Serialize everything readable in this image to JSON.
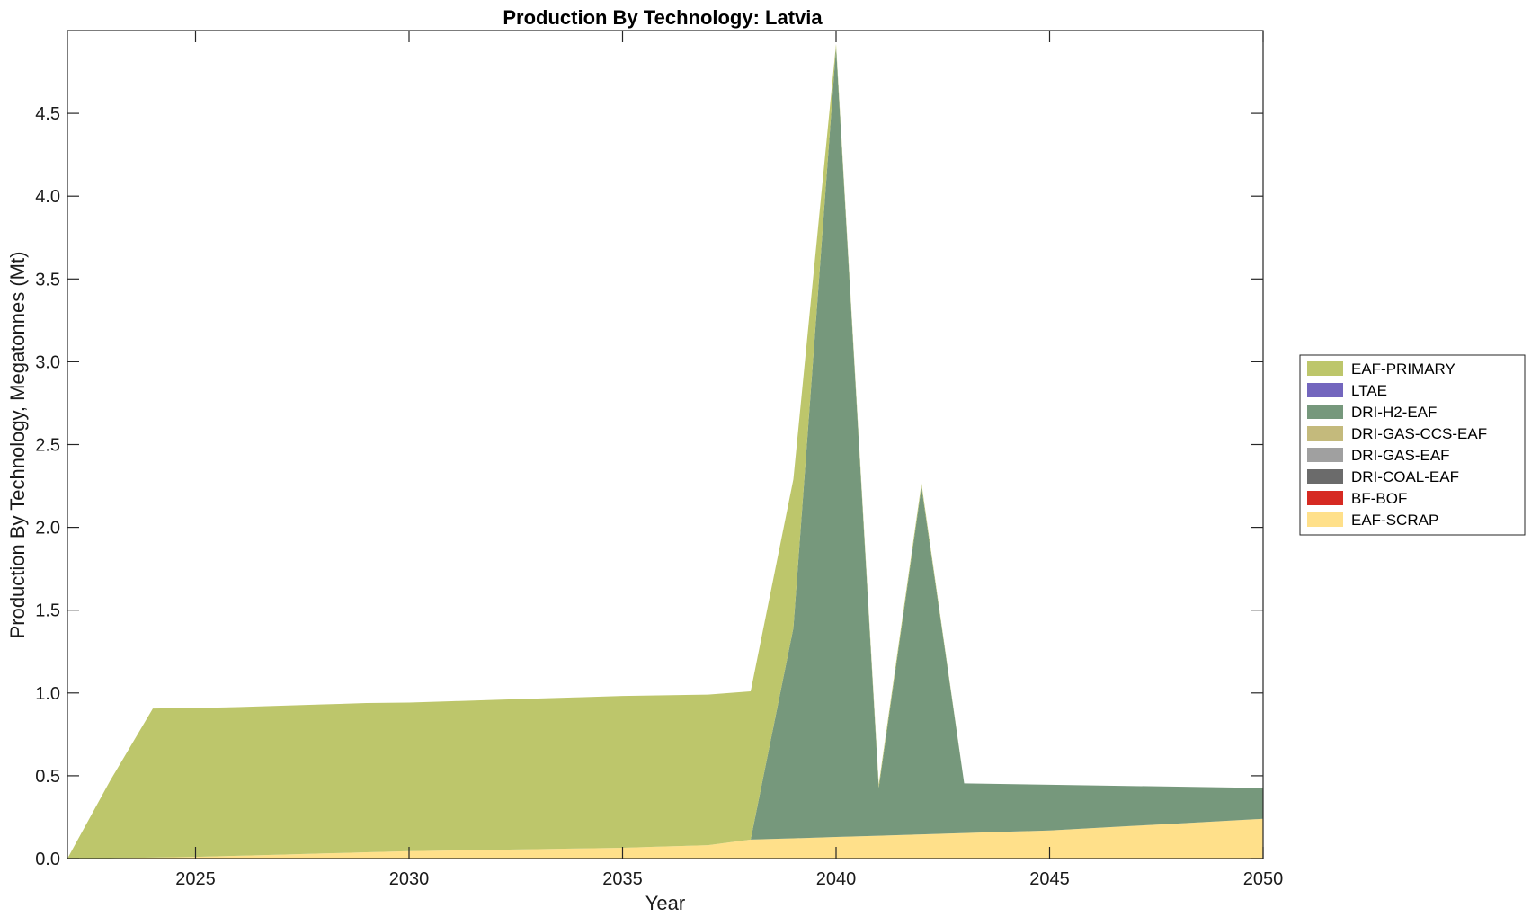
{
  "chart_data": {
    "type": "area",
    "stacked": true,
    "title": "Production By Technology: Latvia",
    "xlabel": "Year",
    "ylabel": "Production By Technology, Megatonnes (Mt)",
    "xlim": [
      2022,
      2050
    ],
    "ylim": [
      0,
      5
    ],
    "xticks": [
      2025,
      2030,
      2035,
      2040,
      2045,
      2050
    ],
    "yticks": [
      0,
      0.5,
      1,
      1.5,
      2,
      2.5,
      3,
      3.5,
      4,
      4.5
    ],
    "ytick_labels": [
      "0.0",
      "0.5",
      "1.0",
      "1.5",
      "2.0",
      "2.5",
      "3.0",
      "3.5",
      "4.0",
      "4.5"
    ],
    "grid": false,
    "legend_position": "right",
    "x": [
      2022,
      2023,
      2024,
      2025,
      2026,
      2027,
      2028,
      2029,
      2030,
      2031,
      2032,
      2033,
      2034,
      2035,
      2036,
      2037,
      2038,
      2039,
      2040,
      2041,
      2042,
      2043,
      2044,
      2045,
      2046,
      2047,
      2048,
      2049,
      2050
    ],
    "series": [
      {
        "name": "EAF-SCRAP",
        "color": "#FFE08A",
        "values": [
          0,
          0.003,
          0.006,
          0.01,
          0.017,
          0.024,
          0.031,
          0.038,
          0.045,
          0.049,
          0.053,
          0.057,
          0.061,
          0.065,
          0.073,
          0.081,
          0.115,
          0.122,
          0.13,
          0.138,
          0.146,
          0.154,
          0.162,
          0.17,
          0.184,
          0.198,
          0.212,
          0.226,
          0.24
        ]
      },
      {
        "name": "BF-BOF",
        "color": "#D62A22",
        "values": [
          0,
          0,
          0,
          0,
          0,
          0,
          0,
          0,
          0,
          0,
          0,
          0,
          0,
          0,
          0,
          0,
          0,
          0,
          0,
          0,
          0,
          0,
          0,
          0,
          0,
          0,
          0,
          0,
          0
        ]
      },
      {
        "name": "DRI-COAL-EAF",
        "color": "#6B6B6B",
        "values": [
          0,
          0,
          0,
          0,
          0,
          0,
          0,
          0,
          0,
          0,
          0,
          0,
          0,
          0,
          0,
          0,
          0,
          0,
          0,
          0,
          0,
          0,
          0,
          0,
          0,
          0,
          0,
          0,
          0
        ]
      },
      {
        "name": "DRI-GAS-EAF",
        "color": "#A0A0A0",
        "values": [
          0,
          0,
          0,
          0,
          0,
          0,
          0,
          0,
          0,
          0,
          0,
          0,
          0,
          0,
          0,
          0,
          0,
          0,
          0,
          0,
          0,
          0,
          0,
          0,
          0,
          0,
          0,
          0,
          0
        ]
      },
      {
        "name": "DRI-GAS-CCS-EAF",
        "color": "#C4BA7C",
        "values": [
          0,
          0,
          0,
          0,
          0,
          0,
          0,
          0,
          0,
          0,
          0,
          0,
          0,
          0,
          0,
          0,
          0,
          0,
          0,
          0,
          0,
          0,
          0,
          0,
          0,
          0,
          0,
          0,
          0
        ]
      },
      {
        "name": "DRI-H2-EAF",
        "color": "#76987C",
        "values": [
          0,
          0,
          0,
          0,
          0,
          0,
          0,
          0,
          0,
          0,
          0,
          0,
          0,
          0,
          0,
          0,
          0,
          1.27,
          4.77,
          0.29,
          2.1,
          0.3,
          0.288,
          0.276,
          0.258,
          0.24,
          0.222,
          0.204,
          0.186
        ]
      },
      {
        "name": "LTAE",
        "color": "#7366BE",
        "values": [
          0,
          0,
          0,
          0,
          0,
          0,
          0,
          0,
          0,
          0,
          0,
          0,
          0,
          0,
          0,
          0,
          0,
          0,
          0,
          0,
          0,
          0,
          0,
          0,
          0,
          0,
          0,
          0,
          0
        ]
      },
      {
        "name": "EAF-PRIMARY",
        "color": "#BDC66B",
        "values": [
          0,
          0.467,
          0.9,
          0.899,
          0.898,
          0.899,
          0.9,
          0.901,
          0.897,
          0.901,
          0.905,
          0.909,
          0.913,
          0.917,
          0.913,
          0.909,
          0.895,
          0.898,
          0.02,
          0.02,
          0.02,
          0.0,
          0.0,
          0.0,
          0.0,
          0.0,
          0.0,
          0.0,
          0.0
        ]
      }
    ]
  }
}
